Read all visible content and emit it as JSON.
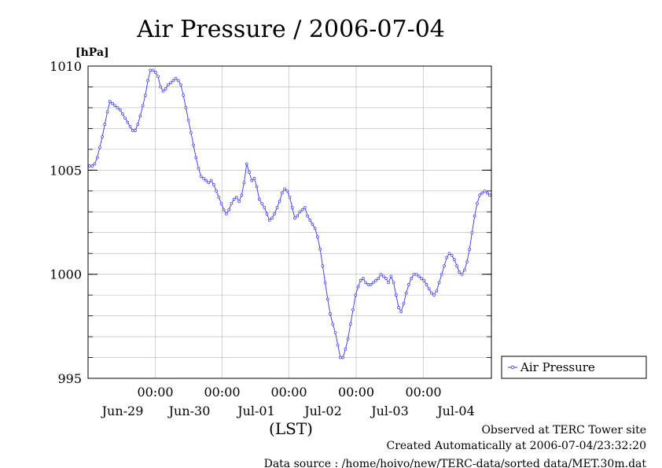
{
  "chart_data": {
    "type": "line",
    "title": "Air Pressure / 2006-07-04",
    "y_unit": "[hPa]",
    "xlabel": "(LST)",
    "ylim": [
      995,
      1010
    ],
    "y_ticks": [
      "1010",
      "1005",
      "1000",
      "995"
    ],
    "x_hour_labels": [
      "00:00",
      "00:00",
      "00:00",
      "00:00",
      "00:00"
    ],
    "x_day_labels": [
      "Jun-29",
      "Jun-30",
      "Jul-01",
      "Jul-02",
      "Jul-03",
      "Jul-04"
    ],
    "grid": true,
    "legend": "right",
    "series": [
      {
        "name": "Air Pressure",
        "color": "#3333ff",
        "values": [
          1005.2,
          1005.2,
          1005.3,
          1005.6,
          1006.1,
          1006.6,
          1007.2,
          1007.8,
          1008.3,
          1008.2,
          1008.1,
          1008.0,
          1007.9,
          1007.7,
          1007.5,
          1007.3,
          1007.1,
          1006.9,
          1006.9,
          1007.2,
          1007.6,
          1008.1,
          1008.6,
          1009.3,
          1009.8,
          1009.8,
          1009.7,
          1009.5,
          1009.0,
          1008.8,
          1008.9,
          1009.1,
          1009.2,
          1009.3,
          1009.4,
          1009.3,
          1009.1,
          1008.6,
          1008.0,
          1007.4,
          1006.8,
          1006.2,
          1005.6,
          1005.1,
          1004.7,
          1004.6,
          1004.5,
          1004.4,
          1004.5,
          1004.3,
          1004.0,
          1003.7,
          1003.4,
          1003.1,
          1002.9,
          1003.1,
          1003.4,
          1003.6,
          1003.7,
          1003.5,
          1003.8,
          1004.4,
          1005.3,
          1004.9,
          1004.5,
          1004.6,
          1004.2,
          1003.6,
          1003.4,
          1003.2,
          1002.9,
          1002.6,
          1002.7,
          1002.9,
          1003.2,
          1003.5,
          1003.9,
          1004.1,
          1004.0,
          1003.7,
          1003.2,
          1002.7,
          1002.8,
          1003.0,
          1003.1,
          1003.2,
          1002.8,
          1002.6,
          1002.4,
          1002.2,
          1001.8,
          1001.2,
          1000.4,
          999.6,
          998.8,
          998.1,
          997.6,
          997.2,
          996.6,
          996.0,
          996.0,
          996.4,
          996.9,
          997.6,
          998.3,
          999.0,
          999.4,
          999.7,
          999.8,
          999.6,
          999.5,
          999.5,
          999.6,
          999.7,
          999.8,
          1000.0,
          999.9,
          999.8,
          999.6,
          999.9,
          999.6,
          999.0,
          998.4,
          998.2,
          998.6,
          999.1,
          999.5,
          999.8,
          1000.0,
          1000.0,
          999.9,
          999.8,
          999.7,
          999.5,
          999.3,
          999.1,
          999.0,
          999.2,
          999.6,
          1000.0,
          1000.4,
          1000.8,
          1001.0,
          1000.9,
          1000.7,
          1000.4,
          1000.1,
          1000.0,
          1000.2,
          1000.6,
          1001.2,
          1002.0,
          1002.8,
          1003.4,
          1003.8,
          1003.9,
          1004.0,
          1003.9,
          1003.8
        ]
      }
    ]
  },
  "footer": {
    "line1": "Observed at TERC Tower site",
    "line2": "Created Automatically at 2006-07-04/23:32:20",
    "line3": "Data source : /home/hoivo/new/TERC-data/sorted data/MET.30m.dat"
  }
}
